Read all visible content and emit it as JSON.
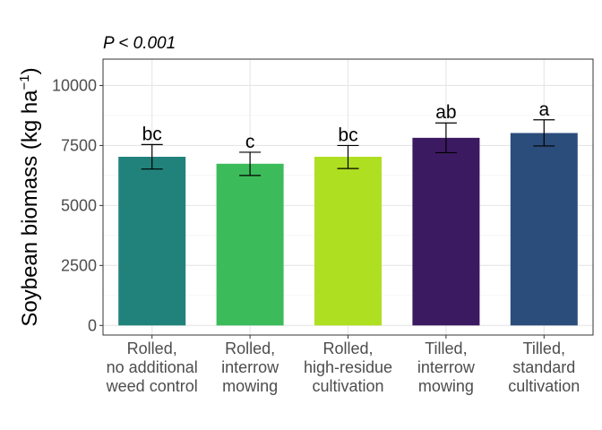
{
  "chart_data": {
    "type": "bar",
    "annotation": "P < 0.001",
    "ylabel": "Soybean biomass (kg ha",
    "ylabel_unit_sup": "−1",
    "ylabel_close": ")",
    "xlabel": "",
    "ylim": [
      -400,
      11100
    ],
    "yticks": [
      0,
      2500,
      5000,
      7500,
      10000
    ],
    "grid": true,
    "categories": [
      [
        "Rolled,",
        "no additional",
        "weed control"
      ],
      [
        "Rolled,",
        "interrow",
        "mowing"
      ],
      [
        "Rolled,",
        "high-residue",
        "cultivation"
      ],
      [
        "Tilled,",
        "interrow",
        "mowing"
      ],
      [
        "Tilled,",
        "standard",
        "cultivation"
      ]
    ],
    "values": [
      7030,
      6740,
      7030,
      7820,
      8020
    ],
    "error_low": [
      6520,
      6250,
      6540,
      7200,
      7480
    ],
    "error_high": [
      7540,
      7220,
      7500,
      8440,
      8570
    ],
    "letters": [
      "bc",
      "c",
      "bc",
      "ab",
      "a"
    ],
    "colors": [
      "#21827b",
      "#3cbb5b",
      "#afdf21",
      "#3b1a61",
      "#2b4d7b"
    ]
  }
}
